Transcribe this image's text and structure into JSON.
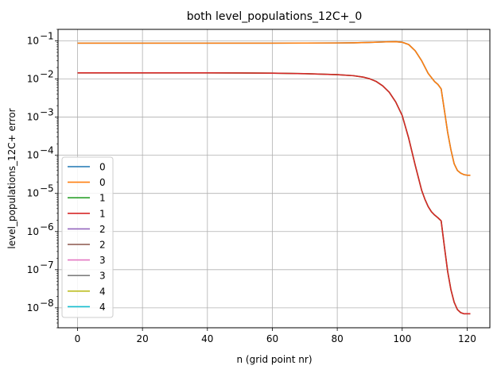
{
  "chart_data": {
    "type": "line",
    "title": "both level_populations_12C+_0",
    "xlabel": "n (grid point nr)",
    "ylabel": "level_populations_12C+ error",
    "xlim": [
      -6,
      127
    ],
    "ylim": [
      3e-09,
      0.2
    ],
    "yscale": "log",
    "grid": true,
    "legend_position": "lower-left",
    "x_ticks": [
      0,
      20,
      40,
      60,
      80,
      100,
      120
    ],
    "y_ticks": [
      {
        "value": 1e-08,
        "base": "10",
        "exp": "−8"
      },
      {
        "value": 1e-07,
        "base": "10",
        "exp": "−7"
      },
      {
        "value": 1e-06,
        "base": "10",
        "exp": "−6"
      },
      {
        "value": 1e-05,
        "base": "10",
        "exp": "−5"
      },
      {
        "value": 0.0001,
        "base": "10",
        "exp": "−4"
      },
      {
        "value": 0.001,
        "base": "10",
        "exp": "−3"
      },
      {
        "value": 0.01,
        "base": "10",
        "exp": "−2"
      },
      {
        "value": 0.1,
        "base": "10",
        "exp": "−1"
      }
    ],
    "series": [
      {
        "name": "0",
        "color": "#1f77b4",
        "curve": "upper"
      },
      {
        "name": "0",
        "color": "#ff7f0e",
        "curve": "upper"
      },
      {
        "name": "1",
        "color": "#2ca02c",
        "curve": "lower"
      },
      {
        "name": "1",
        "color": "#d62728",
        "curve": "lower"
      },
      {
        "name": "2",
        "color": "#9467bd",
        "curve": "none"
      },
      {
        "name": "2",
        "color": "#8c564b",
        "curve": "none"
      },
      {
        "name": "3",
        "color": "#e377c2",
        "curve": "none"
      },
      {
        "name": "3",
        "color": "#7f7f7f",
        "curve": "none"
      },
      {
        "name": "4",
        "color": "#bcbd22",
        "curve": "none"
      },
      {
        "name": "4",
        "color": "#17becf",
        "curve": "none"
      }
    ],
    "curves": {
      "upper": {
        "x": [
          0,
          10,
          20,
          30,
          40,
          50,
          60,
          70,
          80,
          85,
          90,
          95,
          98,
          100,
          102,
          104,
          106,
          108,
          110,
          111,
          112,
          113,
          114,
          115,
          116,
          117,
          118,
          119,
          120,
          121
        ],
        "y": [
          0.087,
          0.087,
          0.087,
          0.087,
          0.087,
          0.087,
          0.087,
          0.0875,
          0.088,
          0.089,
          0.091,
          0.094,
          0.095,
          0.092,
          0.08,
          0.055,
          0.03,
          0.014,
          0.0085,
          0.0072,
          0.0055,
          0.0015,
          0.0004,
          0.00014,
          6e-05,
          4e-05,
          3.4e-05,
          3.1e-05,
          3e-05,
          3e-05
        ]
      },
      "lower": {
        "x": [
          0,
          10,
          20,
          30,
          40,
          50,
          60,
          70,
          80,
          85,
          88,
          90,
          92,
          94,
          96,
          98,
          100,
          102,
          104,
          106,
          107,
          108,
          109,
          110,
          111,
          112,
          113,
          114,
          115,
          116,
          117,
          118,
          119,
          120,
          121
        ],
        "y": [
          0.0145,
          0.0145,
          0.0145,
          0.0145,
          0.0145,
          0.0144,
          0.0142,
          0.0138,
          0.013,
          0.0122,
          0.0112,
          0.0101,
          0.0086,
          0.0066,
          0.0045,
          0.0025,
          0.0011,
          0.00028,
          5.5e-05,
          1.2e-05,
          7e-06,
          4.5e-06,
          3.3e-06,
          2.7e-06,
          2.3e-06,
          1.9e-06,
          4e-07,
          9e-08,
          3e-08,
          1.4e-08,
          9e-09,
          7.5e-09,
          7e-09,
          7e-09,
          7e-09
        ]
      }
    }
  }
}
